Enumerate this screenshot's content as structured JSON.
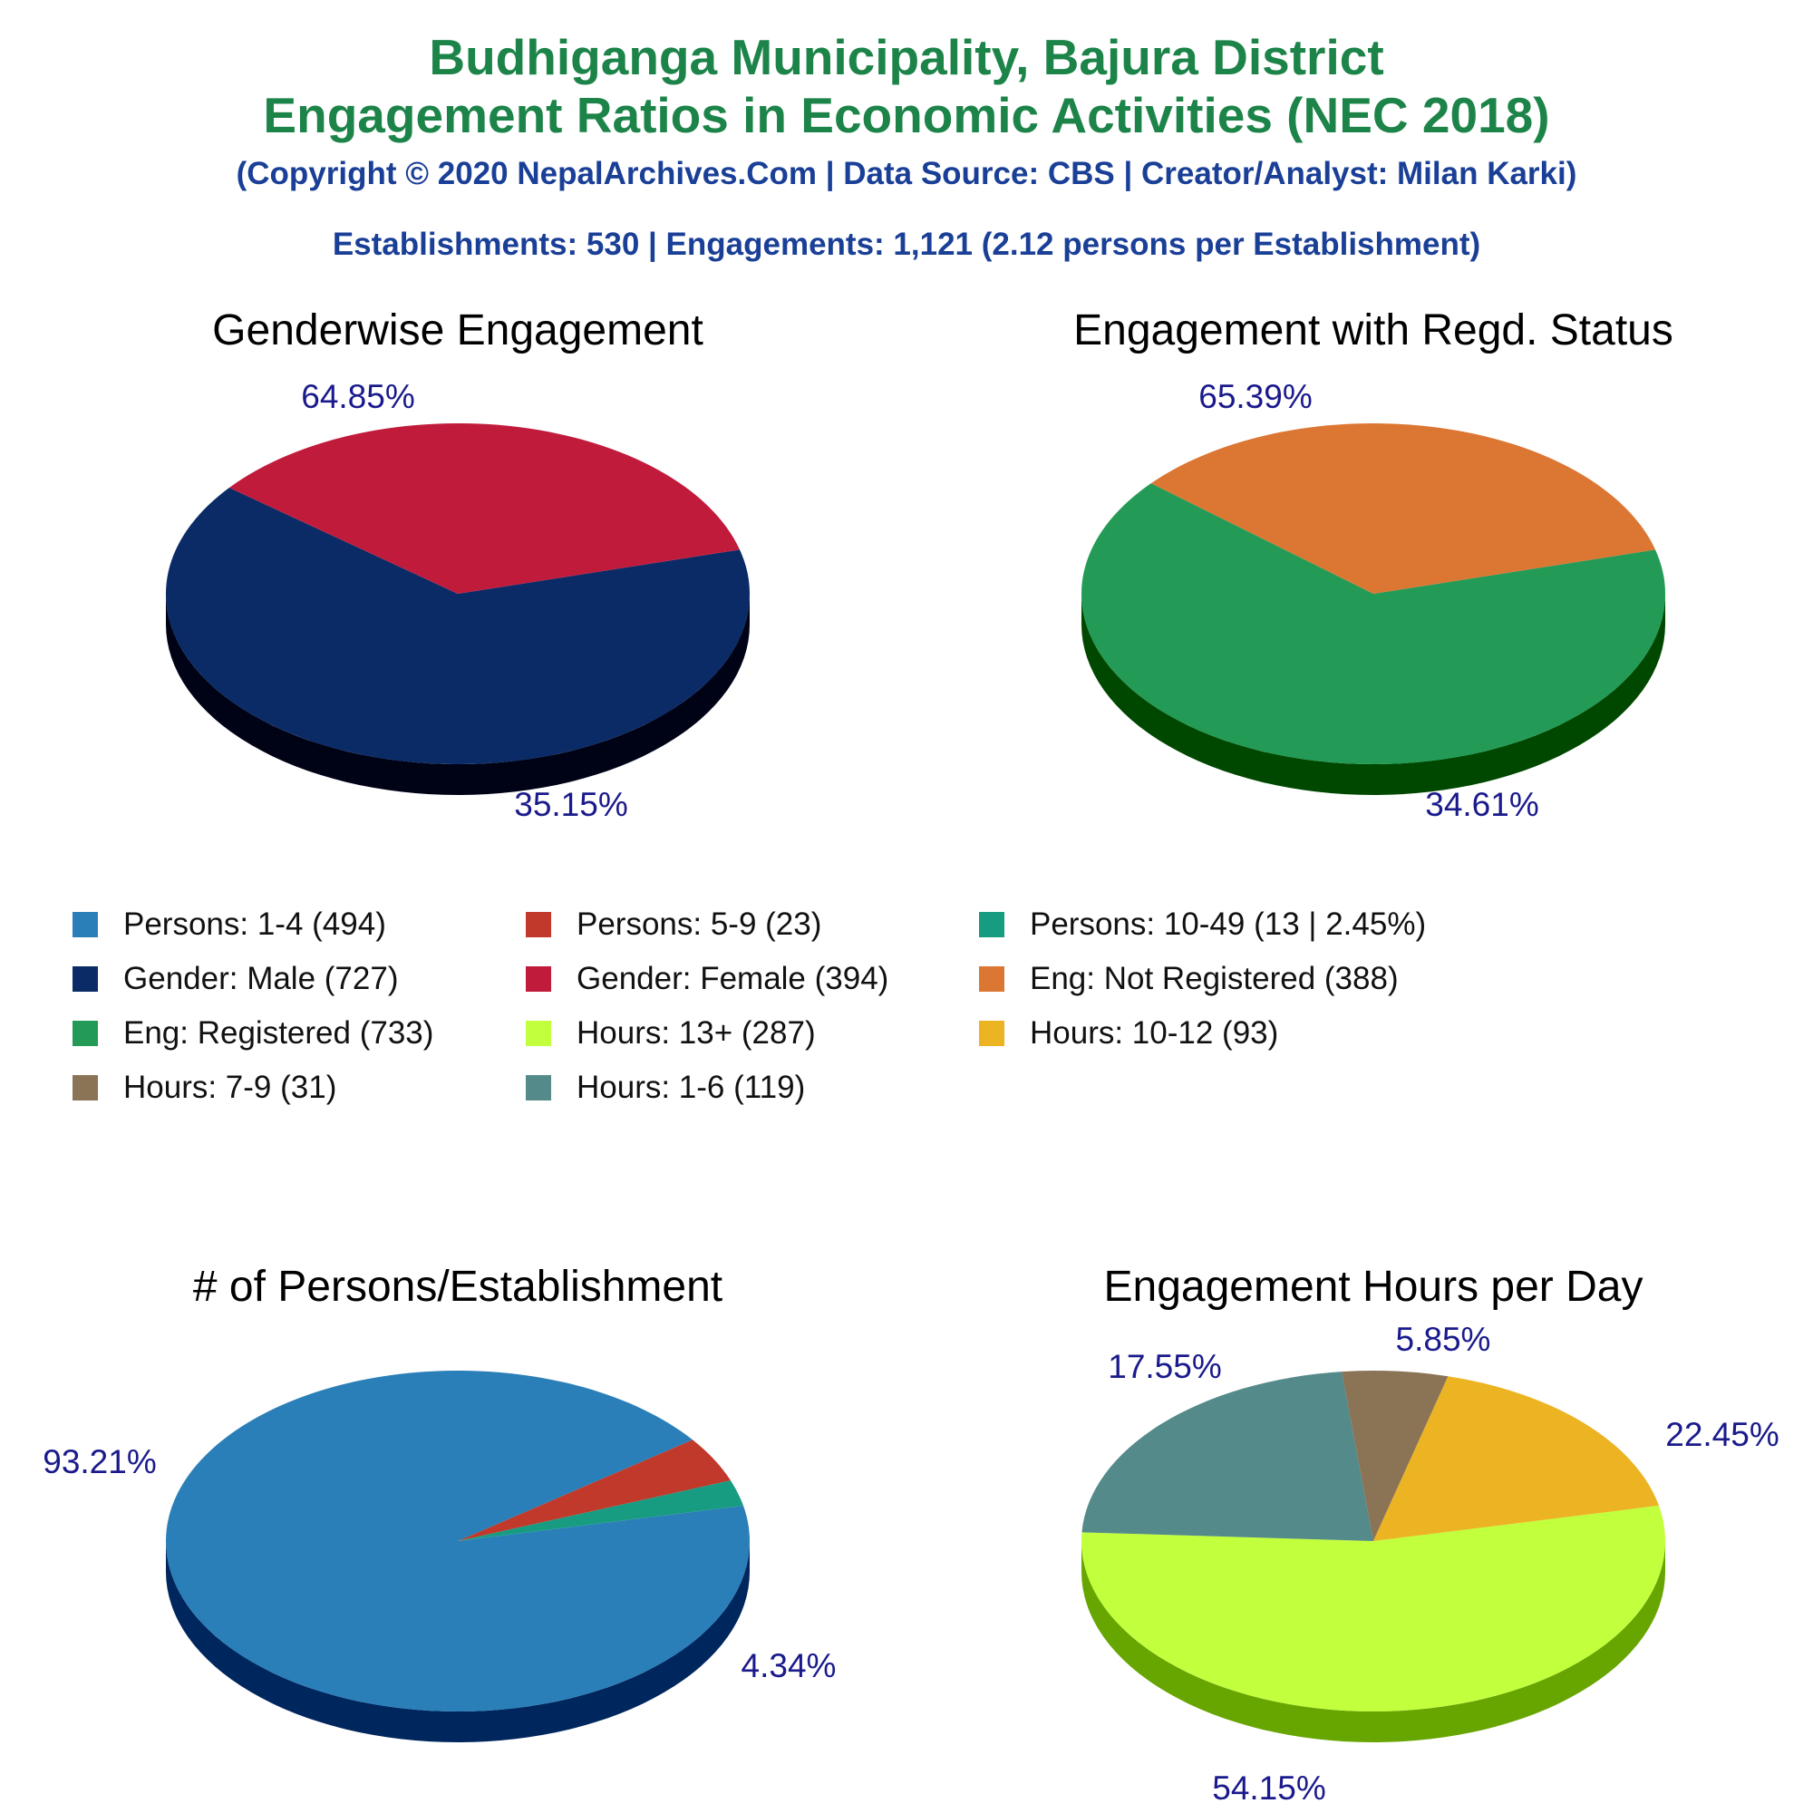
{
  "header": {
    "title_line1": "Budhiganga Municipality, Bajura District",
    "title_line2": "Engagement Ratios in Economic Activities (NEC 2018)",
    "copyright": "(Copyright © 2020 NepalArchives.Com | Data Source: CBS | Creator/Analyst: Milan Karki)",
    "summary": "Establishments: 530 | Engagements: 1,121 (2.12 persons per Establishment)"
  },
  "legend": [
    {
      "label": "Persons: 1-4 (494)",
      "color": "#2a7fb8"
    },
    {
      "label": "Persons: 5-9 (23)",
      "color": "#c0392b"
    },
    {
      "label": "Persons: 10-49 (13 | 2.45%)",
      "color": "#179c82"
    },
    {
      "label": "Gender: Male (727)",
      "color": "#0b2b67"
    },
    {
      "label": "Gender: Female (394)",
      "color": "#c11b3c"
    },
    {
      "label": "Eng: Not Registered (388)",
      "color": "#dc7633"
    },
    {
      "label": "Eng: Registered (733)",
      "color": "#239b56"
    },
    {
      "label": "Hours: 13+ (287)",
      "color": "#c2ff3d"
    },
    {
      "label": "Hours: 10-12 (93)",
      "color": "#ecb322"
    },
    {
      "label": "Hours: 7-9 (31)",
      "color": "#8b7356"
    },
    {
      "label": "Hours: 1-6 (119)",
      "color": "#548a8a"
    }
  ],
  "chart_data": [
    {
      "type": "pie",
      "title": "Genderwise Engagement",
      "slices": [
        {
          "name": "Gender: Male",
          "value": 727,
          "percent_label": "64.85%",
          "color": "#0b2b67",
          "side": "#000316"
        },
        {
          "name": "Gender: Female",
          "value": 394,
          "percent_label": "35.15%",
          "color": "#c11b3c",
          "side": "#6a0000"
        }
      ]
    },
    {
      "type": "pie",
      "title": "Engagement with Regd. Status",
      "slices": [
        {
          "name": "Eng: Registered",
          "value": 733,
          "percent_label": "65.39%",
          "color": "#239b56",
          "side": "#004800"
        },
        {
          "name": "Eng: Not Registered",
          "value": 388,
          "percent_label": "34.61%",
          "color": "#dc7633",
          "side": "#7a1f00"
        }
      ]
    },
    {
      "type": "pie",
      "title": "# of Persons/Establishment",
      "slices": [
        {
          "name": "Persons: 1-4",
          "value": 494,
          "percent_label": "93.21%",
          "color": "#2a7fb8",
          "side": "#00265e"
        },
        {
          "name": "Persons: 5-9",
          "value": 23,
          "percent_label": "4.34%",
          "color": "#c0392b",
          "side": "#6a0000"
        },
        {
          "name": "Persons: 10-49",
          "value": 13,
          "percent_label": "",
          "color": "#179c82",
          "side": "#004a30"
        }
      ]
    },
    {
      "type": "pie",
      "title": "Engagement Hours per Day",
      "slices": [
        {
          "name": "Hours: 13+",
          "value": 287,
          "percent_label": "54.15%",
          "color": "#c2ff3d",
          "side": "#67a500"
        },
        {
          "name": "Hours: 1-6",
          "value": 119,
          "percent_label": "22.45%",
          "color": "#548a8a",
          "side": "#003838"
        },
        {
          "name": "Hours: 7-9",
          "value": 31,
          "percent_label": "5.85%",
          "color": "#8b7356",
          "side": "#3a2a14"
        },
        {
          "name": "Hours: 10-12",
          "value": 93,
          "percent_label": "17.55%",
          "color": "#ecb322",
          "side": "#8a5c00"
        }
      ]
    }
  ]
}
